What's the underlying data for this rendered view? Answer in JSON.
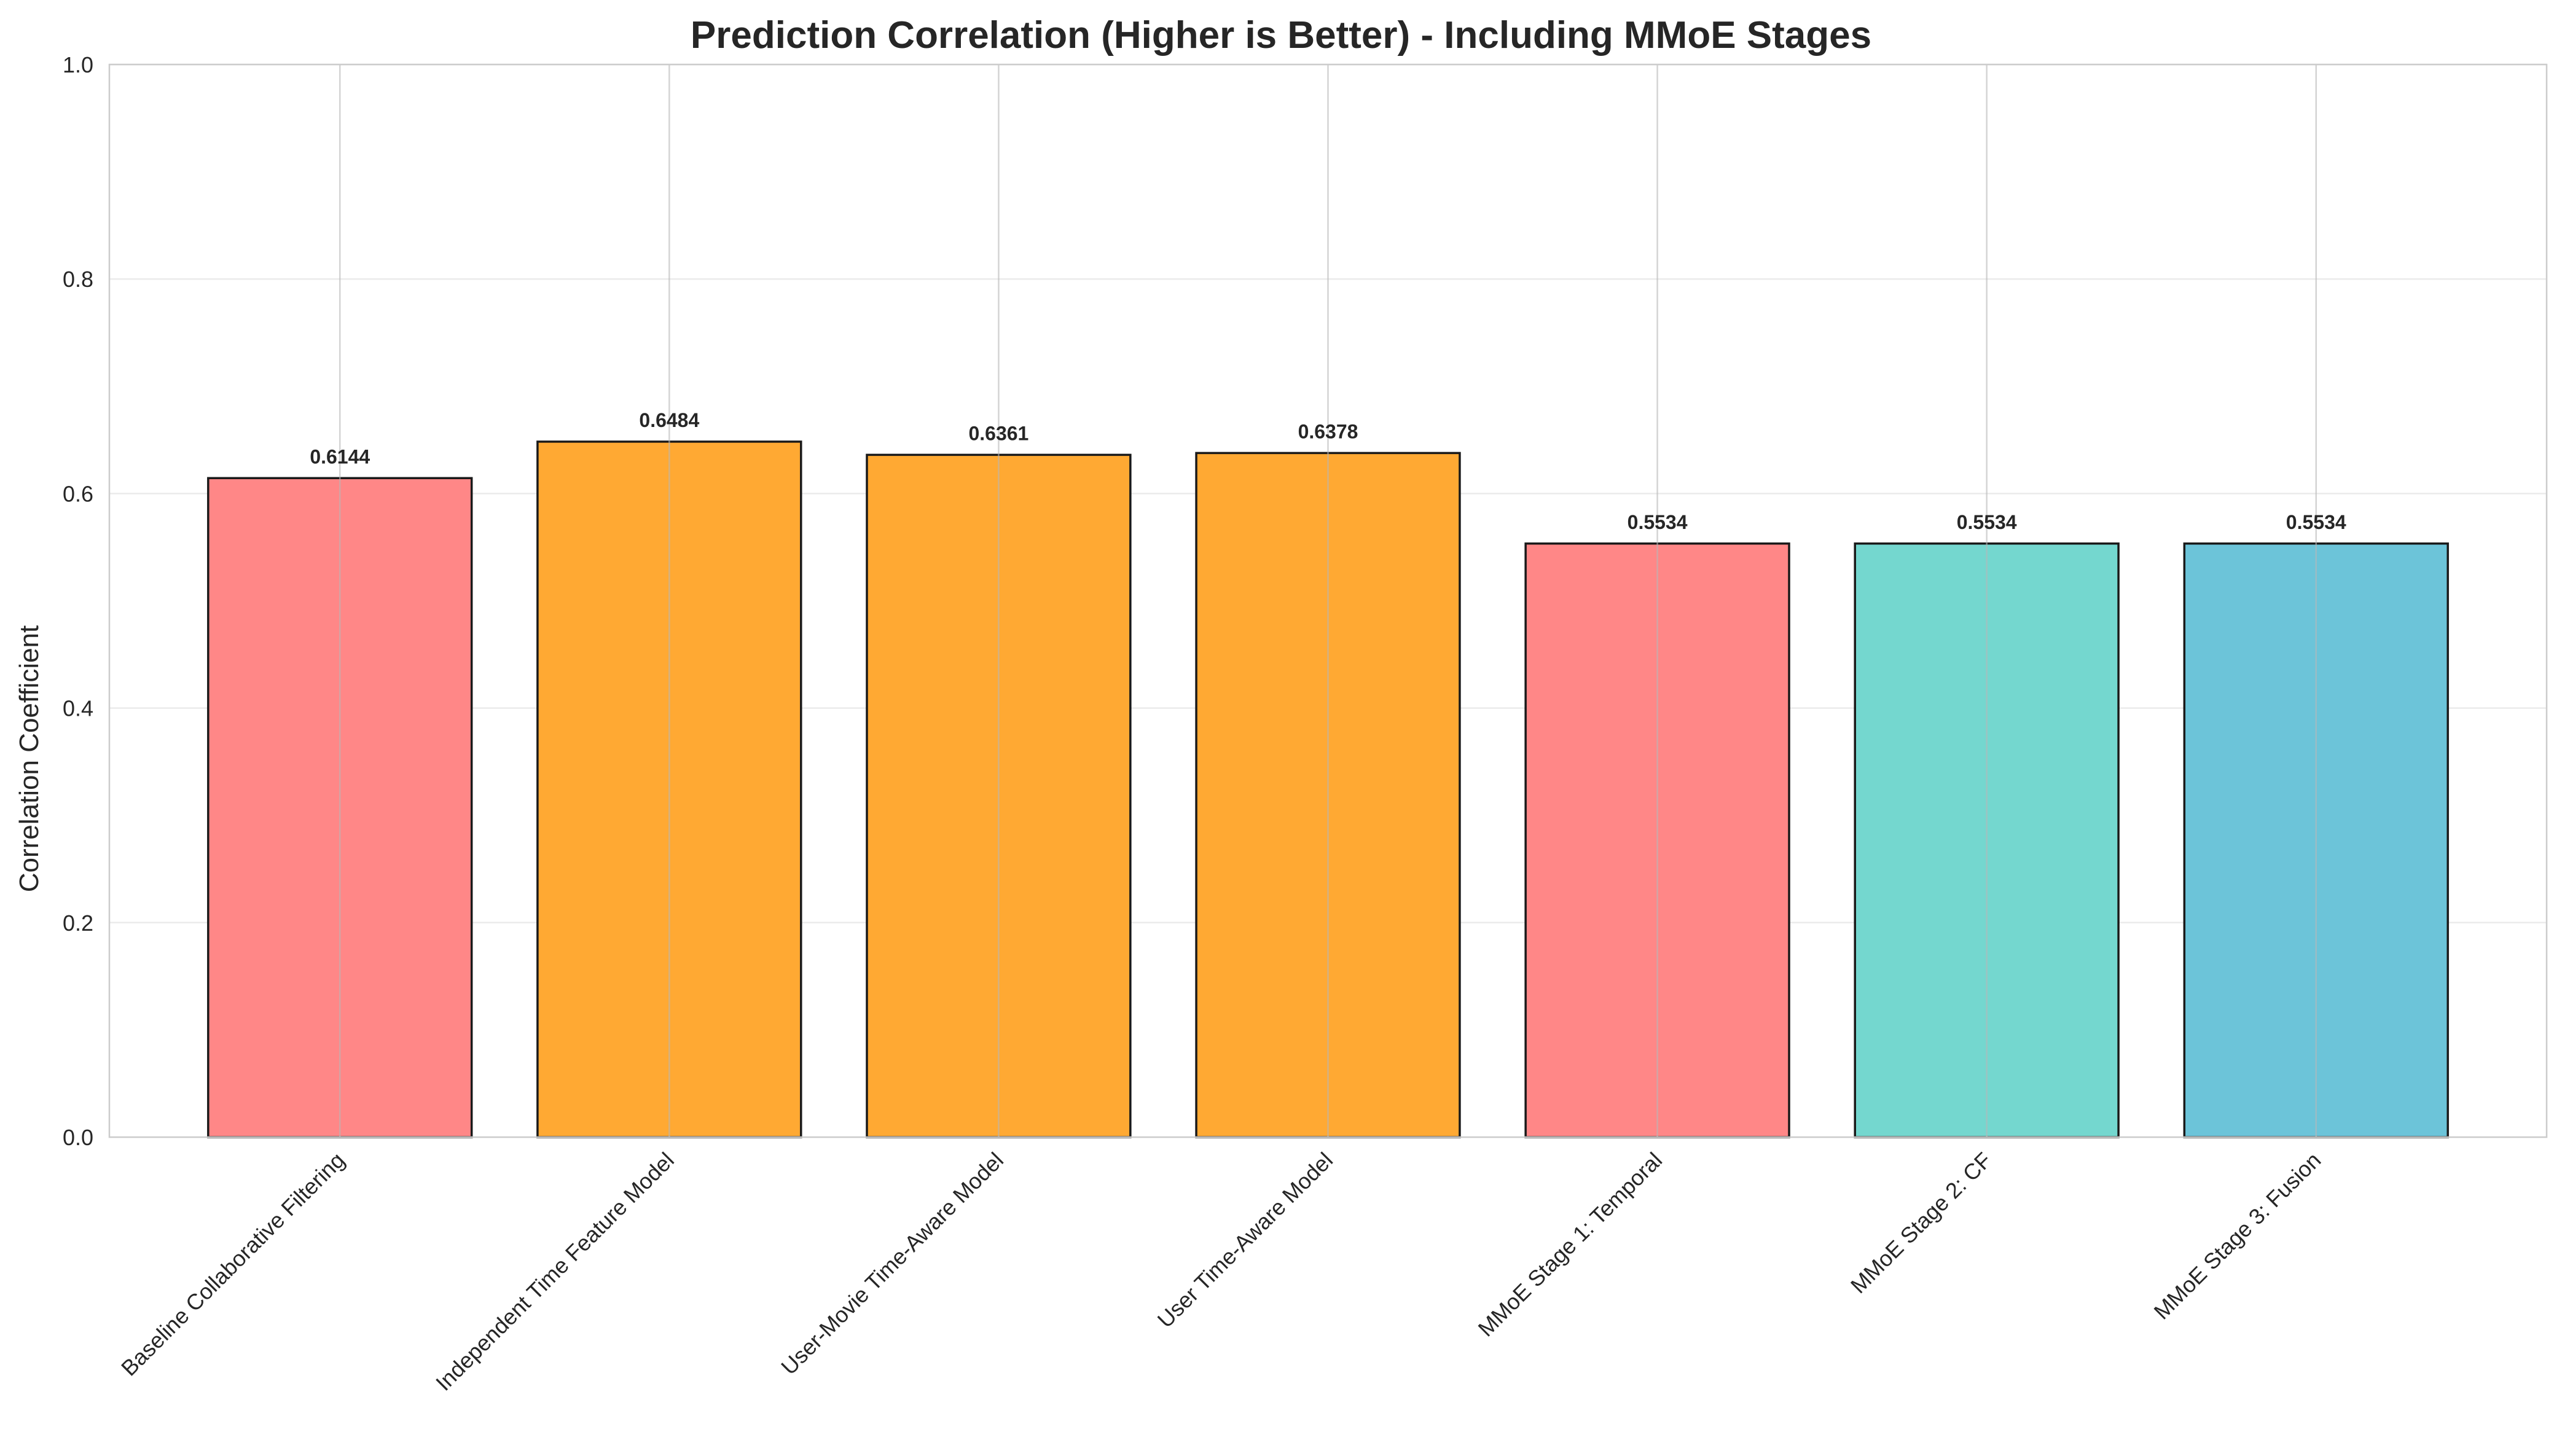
{
  "chart_data": {
    "type": "bar",
    "title": "Prediction Correlation (Higher is Better) - Including MMoE Stages",
    "xlabel": "",
    "ylabel": "Correlation Coefficient",
    "ylim": [
      0,
      1.0
    ],
    "yticks": [
      "0.0",
      "0.2",
      "0.4",
      "0.6",
      "0.8",
      "1.0"
    ],
    "categories": [
      "Baseline Collaborative Filtering",
      "Independent Time Feature Model",
      "User-Movie Time-Aware Model",
      "User Time-Aware Model",
      "MMoE Stage 1: Temporal",
      "MMoE Stage 2: CF",
      "MMoE Stage 3: Fusion"
    ],
    "values": [
      0.6144,
      0.6484,
      0.6361,
      0.6378,
      0.5534,
      0.5534,
      0.5534
    ],
    "value_labels": [
      "0.6144",
      "0.6484",
      "0.6361",
      "0.6378",
      "0.5534",
      "0.5534",
      "0.5534"
    ],
    "bar_colors": [
      "#ff8787",
      "#ffa933",
      "#ffa933",
      "#ffa933",
      "#ff8787",
      "#74d7cf",
      "#6cc4d9"
    ],
    "bar_edge_color": "#1a1a1a",
    "grid": true,
    "legend": "none"
  }
}
